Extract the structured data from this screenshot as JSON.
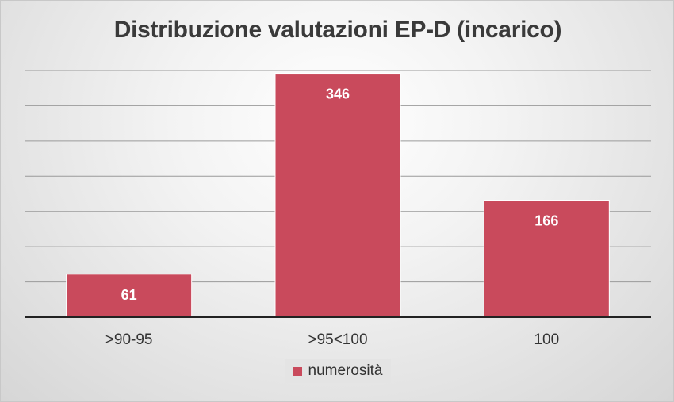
{
  "chart_data": {
    "type": "bar",
    "title": "Distribuzione valutazioni EP-D (incarico)",
    "categories": [
      ">90-95",
      ">95<100",
      "100"
    ],
    "series": [
      {
        "name": "numerosità",
        "values": [
          61,
          346,
          166
        ]
      }
    ],
    "ylim": [
      0,
      350
    ],
    "grid": true,
    "legend": "bottom",
    "bar_color": "#c94a5c",
    "label_color": "#ffffff"
  }
}
